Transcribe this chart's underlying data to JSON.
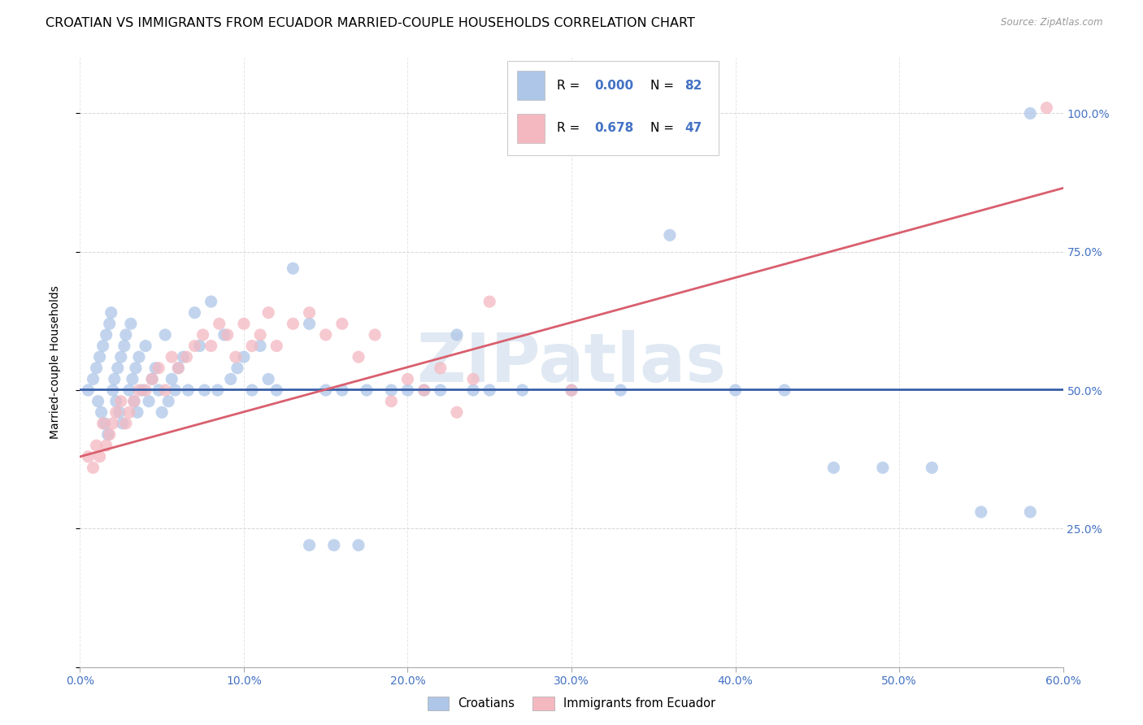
{
  "title": "CROATIAN VS IMMIGRANTS FROM ECUADOR MARRIED-COUPLE HOUSEHOLDS CORRELATION CHART",
  "source": "Source: ZipAtlas.com",
  "ylabel": "Married-couple Households",
  "legend_labels": [
    "Croatians",
    "Immigrants from Ecuador"
  ],
  "blue_R": "0.000",
  "blue_N": "82",
  "pink_R": "0.678",
  "pink_N": "47",
  "blue_color": "#aec6e8",
  "pink_color": "#f4b8c1",
  "blue_line_color": "#3a60a8",
  "pink_line_color": "#d95f6e",
  "watermark_color": "#c8d8ea",
  "grid_color": "#cccccc",
  "tick_color": "#4472c4",
  "title_fontsize": 11.5,
  "source_fontsize": 8.5,
  "tick_fontsize": 10,
  "ylabel_fontsize": 10,
  "xlim": [
    0.0,
    0.6
  ],
  "ylim": [
    0.0,
    1.1
  ],
  "xticks": [
    0.0,
    0.1,
    0.2,
    0.3,
    0.4,
    0.5,
    0.6
  ],
  "xtick_labels": [
    "0.0%",
    "10.0%",
    "20.0%",
    "30.0%",
    "40.0%",
    "50.0%",
    "60.0%"
  ],
  "yticks": [
    0.0,
    0.25,
    0.5,
    0.75,
    1.0
  ],
  "ytick_labels_right": [
    "",
    "25.0%",
    "50.0%",
    "75.0%",
    "100.0%"
  ],
  "blue_x": [
    0.005,
    0.008,
    0.01,
    0.011,
    0.012,
    0.013,
    0.014,
    0.015,
    0.016,
    0.017,
    0.018,
    0.019,
    0.02,
    0.021,
    0.022,
    0.023,
    0.024,
    0.025,
    0.026,
    0.027,
    0.028,
    0.03,
    0.031,
    0.032,
    0.033,
    0.034,
    0.035,
    0.036,
    0.038,
    0.04,
    0.042,
    0.044,
    0.046,
    0.048,
    0.05,
    0.052,
    0.054,
    0.056,
    0.058,
    0.06,
    0.063,
    0.066,
    0.07,
    0.073,
    0.076,
    0.08,
    0.084,
    0.088,
    0.092,
    0.096,
    0.1,
    0.105,
    0.11,
    0.115,
    0.12,
    0.13,
    0.14,
    0.15,
    0.16,
    0.175,
    0.19,
    0.21,
    0.23,
    0.25,
    0.27,
    0.3,
    0.33,
    0.36,
    0.4,
    0.43,
    0.46,
    0.49,
    0.52,
    0.55,
    0.58,
    0.14,
    0.155,
    0.17,
    0.2,
    0.22,
    0.24,
    0.58
  ],
  "blue_y": [
    0.5,
    0.52,
    0.54,
    0.48,
    0.56,
    0.46,
    0.58,
    0.44,
    0.6,
    0.42,
    0.62,
    0.64,
    0.5,
    0.52,
    0.48,
    0.54,
    0.46,
    0.56,
    0.44,
    0.58,
    0.6,
    0.5,
    0.62,
    0.52,
    0.48,
    0.54,
    0.46,
    0.56,
    0.5,
    0.58,
    0.48,
    0.52,
    0.54,
    0.5,
    0.46,
    0.6,
    0.48,
    0.52,
    0.5,
    0.54,
    0.56,
    0.5,
    0.64,
    0.58,
    0.5,
    0.66,
    0.5,
    0.6,
    0.52,
    0.54,
    0.56,
    0.5,
    0.58,
    0.52,
    0.5,
    0.72,
    0.62,
    0.5,
    0.5,
    0.5,
    0.5,
    0.5,
    0.6,
    0.5,
    0.5,
    0.5,
    0.5,
    0.78,
    0.5,
    0.5,
    0.36,
    0.36,
    0.36,
    0.28,
    0.28,
    0.22,
    0.22,
    0.22,
    0.5,
    0.5,
    0.5,
    1.0
  ],
  "pink_x": [
    0.005,
    0.008,
    0.01,
    0.012,
    0.014,
    0.016,
    0.018,
    0.02,
    0.022,
    0.025,
    0.028,
    0.03,
    0.033,
    0.036,
    0.04,
    0.044,
    0.048,
    0.052,
    0.056,
    0.06,
    0.065,
    0.07,
    0.075,
    0.08,
    0.085,
    0.09,
    0.095,
    0.1,
    0.105,
    0.11,
    0.115,
    0.12,
    0.13,
    0.14,
    0.15,
    0.16,
    0.17,
    0.18,
    0.19,
    0.2,
    0.21,
    0.22,
    0.23,
    0.24,
    0.25,
    0.3,
    0.59
  ],
  "pink_y": [
    0.38,
    0.36,
    0.4,
    0.38,
    0.44,
    0.4,
    0.42,
    0.44,
    0.46,
    0.48,
    0.44,
    0.46,
    0.48,
    0.5,
    0.5,
    0.52,
    0.54,
    0.5,
    0.56,
    0.54,
    0.56,
    0.58,
    0.6,
    0.58,
    0.62,
    0.6,
    0.56,
    0.62,
    0.58,
    0.6,
    0.64,
    0.58,
    0.62,
    0.64,
    0.6,
    0.62,
    0.56,
    0.6,
    0.48,
    0.52,
    0.5,
    0.54,
    0.46,
    0.52,
    0.66,
    0.5,
    1.01
  ],
  "blue_trend_y": 0.502,
  "pink_trend_x0": 0.0,
  "pink_trend_y0": 0.38,
  "pink_trend_x1": 0.6,
  "pink_trend_y1": 0.865
}
